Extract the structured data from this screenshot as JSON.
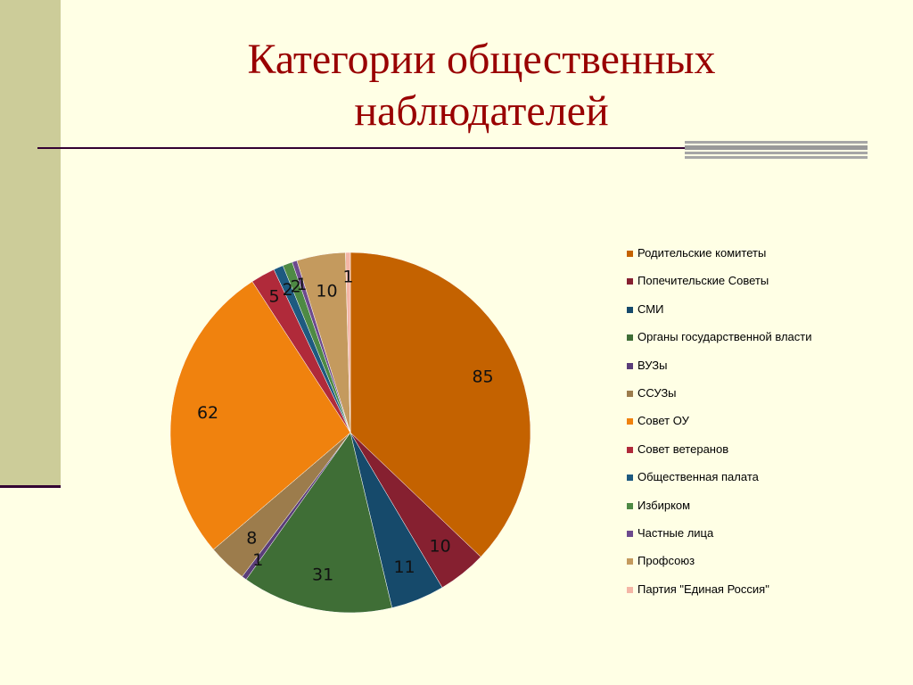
{
  "title": "Категории общественных наблюдателей",
  "chart_data": {
    "type": "pie",
    "title": "Категории общественных наблюдателей",
    "legend_position": "right",
    "slices": [
      {
        "label": "Родительские комитеты",
        "value": 85,
        "color": "#c46200"
      },
      {
        "label": "Попечительские Советы",
        "value": 10,
        "color": "#862030"
      },
      {
        "label": "СМИ",
        "value": 11,
        "color": "#164a6b"
      },
      {
        "label": "Органы государственной власти",
        "value": 31,
        "color": "#3f6e36"
      },
      {
        "label": "ВУЗы",
        "value": 1,
        "color": "#5a3d79"
      },
      {
        "label": "ССУЗы",
        "value": 8,
        "color": "#9c7c4c"
      },
      {
        "label": "Совет ОУ",
        "value": 62,
        "color": "#f0820e"
      },
      {
        "label": "Совет ветеранов",
        "value": 5,
        "color": "#b02a3a"
      },
      {
        "label": "Общественная палата",
        "value": 2,
        "color": "#1e5a80"
      },
      {
        "label": "Избирком",
        "value": 2,
        "color": "#4e8a44"
      },
      {
        "label": "Частные лица",
        "value": 1,
        "color": "#6d4a8e"
      },
      {
        "label": "Профсоюз",
        "value": 10,
        "color": "#c49a5e"
      },
      {
        "label": "Партия \"Единая Россия\"",
        "value": 1,
        "color": "#f4b6a6"
      }
    ]
  }
}
